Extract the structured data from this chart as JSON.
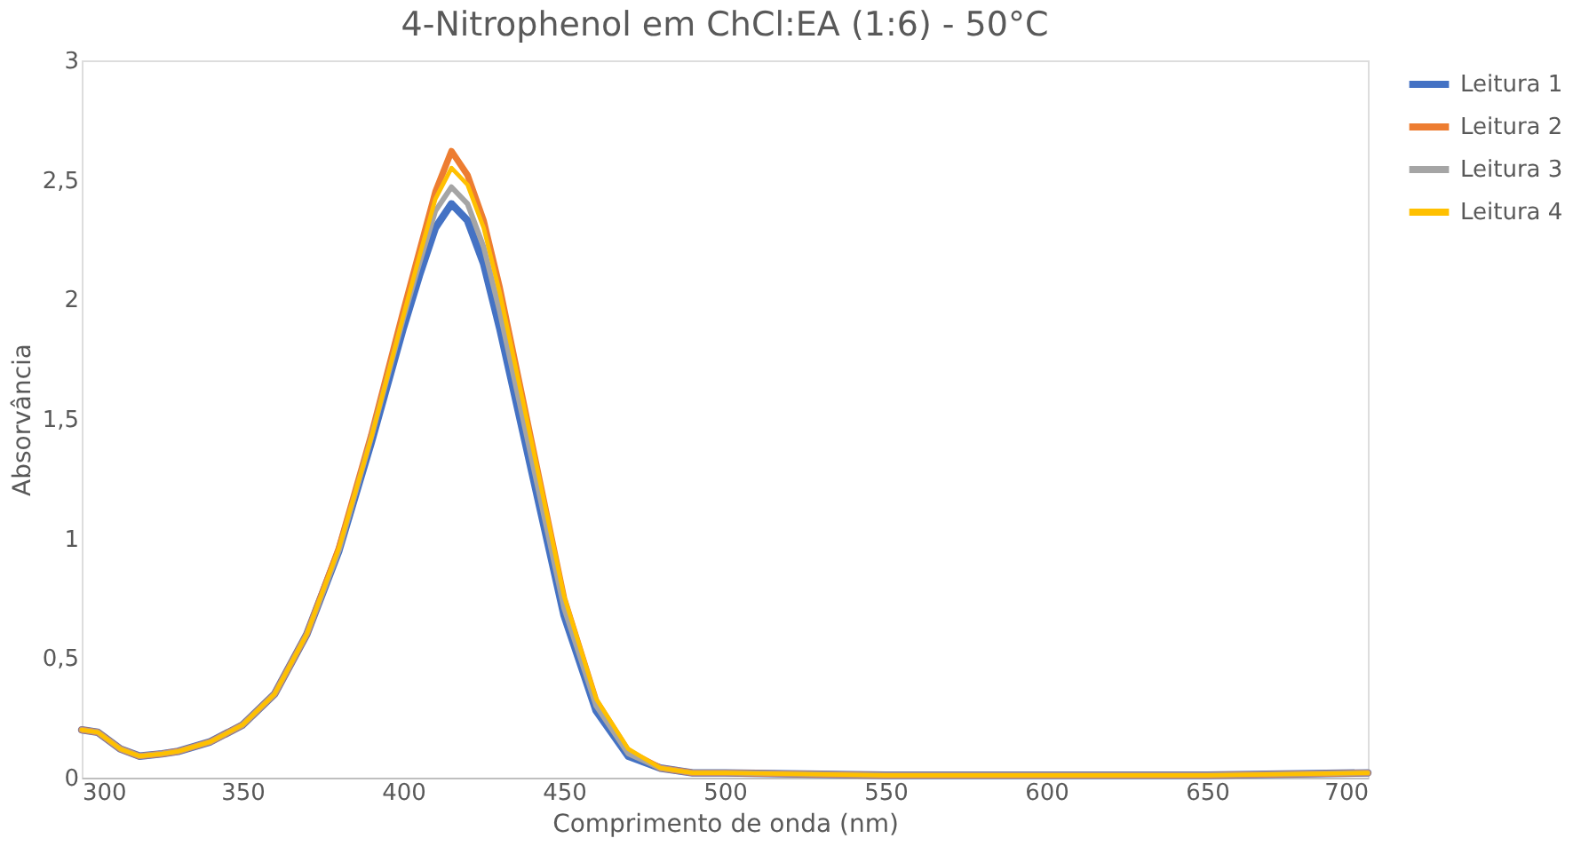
{
  "chart_data": {
    "type": "line",
    "title": "4-Nitrophenol em ChCl:EA (1:6) - 50°C",
    "xlabel": "Comprimento de onda (nm)",
    "ylabel": "Absorvância",
    "x": [
      300,
      305,
      312,
      318,
      325,
      330,
      340,
      350,
      360,
      370,
      380,
      390,
      400,
      405,
      410,
      415,
      420,
      425,
      430,
      440,
      450,
      460,
      470,
      480,
      490,
      500,
      550,
      600,
      650,
      700
    ],
    "series": [
      {
        "name": "Leitura 1",
        "color": "#4472c4",
        "values": [
          0.2,
          0.19,
          0.12,
          0.09,
          0.1,
          0.11,
          0.15,
          0.22,
          0.35,
          0.6,
          0.95,
          1.4,
          1.88,
          2.1,
          2.3,
          2.4,
          2.33,
          2.15,
          1.88,
          1.28,
          0.68,
          0.28,
          0.09,
          0.04,
          0.02,
          0.02,
          0.01,
          0.01,
          0.01,
          0.02
        ]
      },
      {
        "name": "Leitura 2",
        "color": "#ed7d31",
        "values": [
          0.2,
          0.19,
          0.12,
          0.09,
          0.1,
          0.11,
          0.15,
          0.22,
          0.35,
          0.6,
          0.96,
          1.43,
          1.95,
          2.2,
          2.45,
          2.62,
          2.52,
          2.33,
          2.05,
          1.4,
          0.75,
          0.32,
          0.11,
          0.04,
          0.02,
          0.02,
          0.01,
          0.01,
          0.01,
          0.02
        ]
      },
      {
        "name": "Leitura 3",
        "color": "#a5a5a5",
        "values": [
          0.2,
          0.19,
          0.12,
          0.09,
          0.1,
          0.11,
          0.15,
          0.22,
          0.35,
          0.6,
          0.95,
          1.42,
          1.92,
          2.15,
          2.37,
          2.47,
          2.4,
          2.22,
          1.95,
          1.33,
          0.71,
          0.3,
          0.1,
          0.04,
          0.02,
          0.02,
          0.01,
          0.01,
          0.01,
          0.02
        ]
      },
      {
        "name": "Leitura 4",
        "color": "#ffc000",
        "values": [
          0.2,
          0.19,
          0.12,
          0.09,
          0.1,
          0.11,
          0.15,
          0.22,
          0.35,
          0.6,
          0.96,
          1.42,
          1.93,
          2.18,
          2.42,
          2.55,
          2.48,
          2.3,
          2.03,
          1.4,
          0.76,
          0.33,
          0.12,
          0.04,
          0.02,
          0.02,
          0.01,
          0.01,
          0.01,
          0.02
        ]
      }
    ],
    "xlim": [
      300,
      700
    ],
    "xticks": [
      300,
      350,
      400,
      450,
      500,
      550,
      600,
      650,
      700
    ],
    "ylim": [
      0,
      3
    ],
    "yticks": [
      0,
      {
        "value": 0.5,
        "label": "0,5"
      },
      1,
      {
        "value": 1.5,
        "label": "1,5"
      },
      2,
      {
        "value": 2.5,
        "label": "2,5"
      },
      3
    ],
    "grid": false,
    "legend": "right",
    "marker": "none",
    "line_style": "solid"
  }
}
